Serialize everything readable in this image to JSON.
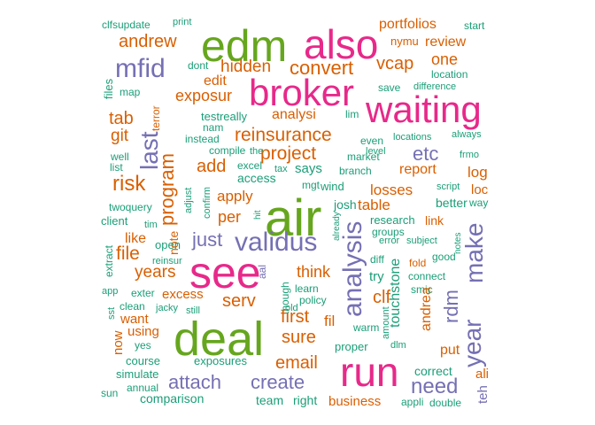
{
  "colors": {
    "green": "#1b9e77",
    "orange": "#d95f02",
    "purple": "#7570b3",
    "pink": "#e7298a",
    "lime": "#66a61e"
  },
  "words": [
    "edm",
    "also",
    "broker",
    "waiting",
    "air",
    "see",
    "deal",
    "run",
    "validus",
    "analysis",
    "year",
    "make",
    "mfid",
    "andrew",
    "hidden",
    "convert",
    "vcap",
    "one",
    "review",
    "portfolios",
    "nymu",
    "start",
    "clfsupdate",
    "print",
    "files",
    "map",
    "dont",
    "edit",
    "exposur",
    "save",
    "difference",
    "location",
    "last",
    "reinsurance",
    "project",
    "etc",
    "analysi",
    "lim",
    "tab",
    "git",
    "terror",
    "testreally",
    "nam",
    "instead",
    "compile",
    "excel",
    "the",
    "tax",
    "says",
    "mgt",
    "wind",
    "branch",
    "market",
    "even",
    "locations",
    "always",
    "frmo",
    "level",
    "program",
    "add",
    "risk",
    "log",
    "loc",
    "report",
    "losses",
    "table",
    "script",
    "way",
    "apply",
    "per",
    "josh",
    "research",
    "link",
    "better",
    "just",
    "note",
    "adjust",
    "confirm",
    "hit",
    "already",
    "groups",
    "error",
    "subject",
    "notes",
    "good",
    "fold",
    "rdm",
    "file",
    "like",
    "years",
    "open",
    "reinsur",
    "aal",
    "though",
    "touchstone",
    "diff",
    "clf",
    "try",
    "connect",
    "smic",
    "think",
    "serv",
    "excess",
    "learn",
    "policy",
    "first",
    "fil",
    "sure",
    "andrea",
    "put",
    "email",
    "attach",
    "create",
    "need",
    "ali",
    "teh",
    "correct",
    "double",
    "appli",
    "business",
    "proper",
    "dlm",
    "amount",
    "warm",
    "old",
    "team",
    "right",
    "comparison",
    "exposures",
    "course",
    "simulate",
    "annual",
    "sun",
    "yes",
    "using",
    "now",
    "want",
    "sst",
    "clean",
    "jacky",
    "still",
    "app",
    "exter",
    "extract",
    "client",
    "twoquery",
    "tim",
    "list",
    "well",
    "access"
  ]
}
